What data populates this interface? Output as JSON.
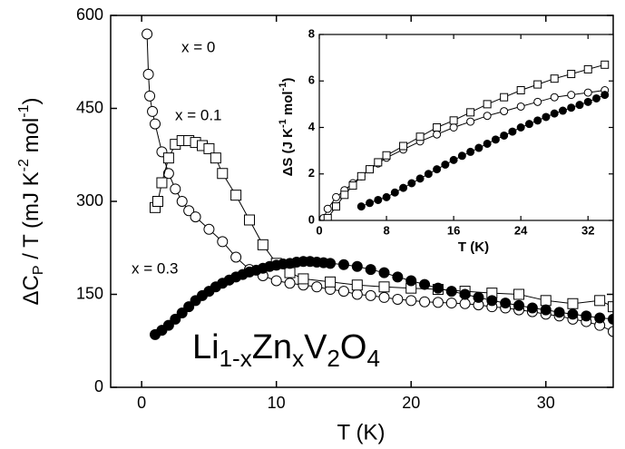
{
  "chart_data": [
    {
      "type": "scatter",
      "xlabel": "T (K)",
      "ylabel": [
        "ΔC",
        "P",
        " / T (mJ K",
        "-2",
        " mol",
        "-1",
        ")"
      ],
      "formula": [
        "Li",
        "1-x",
        "Zn",
        "x",
        "V",
        "2",
        "O",
        "4"
      ],
      "xlim": [
        -2.3,
        35
      ],
      "xticks": [
        0,
        10,
        20,
        30
      ],
      "ylim": [
        0,
        600
      ],
      "yticks": [
        0,
        150,
        300,
        450,
        600
      ],
      "series": [
        {
          "name": "x = 0",
          "marker": "circle",
          "filled": false,
          "color": "#000000",
          "x": [
            0.4,
            0.5,
            0.6,
            0.8,
            1,
            1.5,
            2,
            2.5,
            3,
            3.5,
            4,
            5,
            6,
            7,
            8,
            9,
            10,
            11,
            12,
            13,
            14,
            15,
            16,
            17,
            18,
            19,
            20,
            21,
            22,
            23,
            24,
            25,
            26,
            27,
            28,
            29,
            30,
            31,
            32,
            33,
            34,
            35
          ],
          "values": [
            570,
            505,
            470,
            445,
            425,
            380,
            345,
            320,
            300,
            285,
            275,
            255,
            235,
            210,
            190,
            180,
            172,
            168,
            165,
            162,
            158,
            155,
            150,
            148,
            145,
            142,
            140,
            138,
            137,
            136,
            135,
            133,
            130,
            128,
            125,
            122,
            118,
            115,
            110,
            106,
            100,
            90
          ]
        },
        {
          "name": "x = 0.1",
          "marker": "square",
          "filled": false,
          "color": "#000000",
          "x": [
            1,
            1.2,
            1.5,
            2,
            2.5,
            3,
            3.5,
            4,
            4.5,
            5,
            5.5,
            6,
            7,
            8,
            9,
            10,
            11,
            12,
            14,
            16,
            18,
            20,
            22,
            24,
            26,
            28,
            30,
            32,
            34,
            35
          ],
          "values": [
            290,
            300,
            330,
            370,
            392,
            398,
            398,
            395,
            390,
            385,
            370,
            345,
            310,
            270,
            230,
            200,
            185,
            175,
            170,
            165,
            162,
            160,
            158,
            155,
            152,
            150,
            140,
            135,
            140,
            130
          ]
        },
        {
          "name": "x = 0.3",
          "marker": "circle",
          "filled": true,
          "color": "#000000",
          "x": [
            1,
            1.5,
            2,
            2.5,
            3,
            3.5,
            4,
            4.5,
            5,
            5.5,
            6,
            6.5,
            7,
            7.5,
            8,
            8.5,
            9,
            9.5,
            10,
            10.5,
            11,
            11.5,
            12,
            12.5,
            13,
            13.5,
            14,
            15,
            16,
            17,
            18,
            19,
            20,
            21,
            22,
            23,
            24,
            25,
            26,
            27,
            28,
            29,
            30,
            31,
            32,
            33,
            34,
            35
          ],
          "values": [
            85,
            92,
            100,
            110,
            120,
            130,
            140,
            148,
            155,
            162,
            168,
            173,
            178,
            182,
            186,
            189,
            192,
            195,
            197,
            199,
            200,
            202,
            203,
            203,
            202,
            201,
            200,
            198,
            195,
            190,
            185,
            178,
            172,
            166,
            160,
            155,
            150,
            145,
            140,
            136,
            132,
            128,
            125,
            121,
            118,
            115,
            112,
            110
          ]
        }
      ]
    },
    {
      "type": "scatter",
      "xlabel": "T (K)",
      "ylabel": [
        "ΔS (J K",
        "-1",
        " mol",
        "-1",
        ")"
      ],
      "xlim": [
        0,
        35
      ],
      "xticks": [
        0,
        8,
        16,
        24,
        32
      ],
      "ylim": [
        0,
        8
      ],
      "yticks": [
        0,
        2,
        4,
        6,
        8
      ],
      "series": [
        {
          "marker": "circle",
          "filled": false,
          "color": "#000000",
          "x": [
            0.5,
            1,
            2,
            3,
            4,
            5,
            6,
            7,
            8,
            10,
            12,
            14,
            16,
            18,
            20,
            22,
            24,
            26,
            28,
            30,
            32,
            34
          ],
          "values": [
            0.1,
            0.5,
            1.0,
            1.3,
            1.6,
            1.9,
            2.2,
            2.45,
            2.7,
            3.05,
            3.4,
            3.7,
            4.0,
            4.25,
            4.5,
            4.7,
            4.9,
            5.1,
            5.3,
            5.4,
            5.5,
            5.6
          ]
        },
        {
          "marker": "square",
          "filled": false,
          "color": "#000000",
          "x": [
            1,
            2,
            3,
            4,
            5,
            6,
            7,
            8,
            10,
            12,
            14,
            16,
            18,
            20,
            22,
            24,
            26,
            28,
            30,
            32,
            34
          ],
          "values": [
            0.1,
            0.6,
            1.1,
            1.5,
            1.9,
            2.2,
            2.5,
            2.8,
            3.2,
            3.6,
            4.0,
            4.3,
            4.65,
            5.0,
            5.3,
            5.6,
            5.85,
            6.1,
            6.3,
            6.5,
            6.7
          ]
        },
        {
          "marker": "circle",
          "filled": true,
          "color": "#000000",
          "x": [
            5,
            6,
            7,
            8,
            9,
            10,
            11,
            12,
            13,
            14,
            15,
            16,
            17,
            18,
            19,
            20,
            21,
            22,
            23,
            24,
            25,
            26,
            27,
            28,
            29,
            30,
            31,
            32,
            33,
            34
          ],
          "values": [
            0.6,
            0.75,
            0.88,
            1.0,
            1.2,
            1.4,
            1.6,
            1.8,
            2.0,
            2.2,
            2.4,
            2.6,
            2.78,
            2.95,
            3.12,
            3.3,
            3.48,
            3.65,
            3.82,
            4.0,
            4.15,
            4.3,
            4.45,
            4.6,
            4.72,
            4.85,
            4.97,
            5.1,
            5.25,
            5.4
          ]
        }
      ]
    }
  ]
}
